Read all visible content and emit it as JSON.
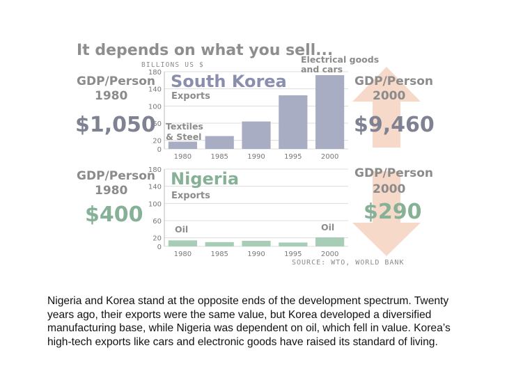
{
  "title": "It depends on what you sell...",
  "units_label": "BILLIONS US $",
  "source": "SOURCE: WTO, WORLD BANK",
  "colors": {
    "korea": "#a9adc4",
    "nigeria": "#a8cdb7",
    "arrow": "#f6d9c9",
    "grid": "#dcdcdc"
  },
  "korea": {
    "country": "South Korea",
    "subtitle": "Exports",
    "gdp_label_1980": "GDP/Person",
    "year_1980": "1980",
    "gdp_1980": "$1,050",
    "gdp_label_2000": "GDP/Person",
    "year_2000": "2000",
    "gdp_2000": "$9,460",
    "annotation_low_1": "Textiles",
    "annotation_low_2": "& Steel",
    "annotation_high_1": "Electrical goods",
    "annotation_high_2": "and cars"
  },
  "nigeria": {
    "country": "Nigeria",
    "subtitle": "Exports",
    "gdp_label_1980": "GDP/Person",
    "year_1980": "1980",
    "gdp_1980": "$400",
    "gdp_label_2000": "GDP/Person",
    "year_2000": "2000",
    "gdp_2000": "$290",
    "annotation_low": "Oil",
    "annotation_high": "Oil"
  },
  "caption": "Nigeria and Korea stand at the opposite ends of the development spectrum. Twenty years ago, their exports were the same value, but Korea developed a diversified manufacturing base, while Nigeria was dependent on oil, which fell in value. Korea’s high-tech exports like cars and electronic goods have raised its standard of living.",
  "chart_data": [
    {
      "type": "bar",
      "title": "South Korea",
      "subtitle": "Exports",
      "ylabel": "BILLIONS US $",
      "categories": [
        "1980",
        "1985",
        "1990",
        "1995",
        "2000"
      ],
      "values": [
        17,
        30,
        64,
        125,
        172
      ],
      "yticks": [
        0,
        20,
        60,
        100,
        140,
        180
      ],
      "ylim": [
        0,
        180
      ],
      "grid": true
    },
    {
      "type": "bar",
      "title": "Nigeria",
      "subtitle": "Exports",
      "ylabel": "BILLIONS US $",
      "categories": [
        "1980",
        "1985",
        "1990",
        "1995",
        "2000"
      ],
      "values": [
        14,
        10,
        13,
        9,
        21
      ],
      "yticks": [
        0,
        20,
        60,
        100,
        140,
        180
      ],
      "ylim": [
        0,
        180
      ],
      "grid": true
    }
  ]
}
